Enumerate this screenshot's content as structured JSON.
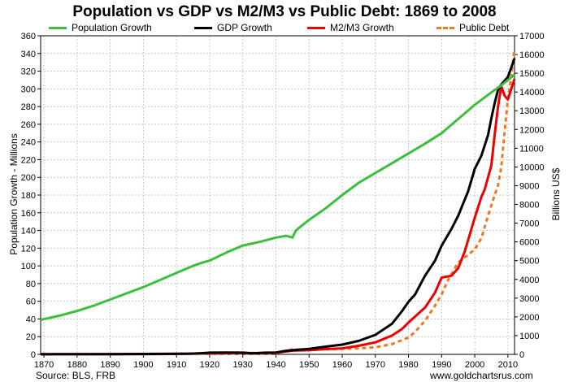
{
  "chart_data": {
    "type": "line",
    "title": "Population vs GDP vs M2/M3 vs Public Debt: 1869 to 2008",
    "ylabel_left": "Population Growth - Millions",
    "ylabel_right": "Billions US$",
    "source": "Source: BLS, FRB",
    "website": "www.goldchartsrus.com",
    "xlim": [
      1869,
      2012
    ],
    "ylim_left": [
      0,
      360
    ],
    "ylim_right": [
      0,
      17000
    ],
    "x_ticks": [
      1870,
      1880,
      1890,
      1900,
      1910,
      1920,
      1930,
      1940,
      1950,
      1960,
      1970,
      1980,
      1990,
      2000,
      2010
    ],
    "y_left_ticks": [
      0,
      20,
      40,
      60,
      80,
      100,
      120,
      140,
      160,
      180,
      200,
      220,
      240,
      260,
      280,
      300,
      320,
      340,
      360
    ],
    "y_right_ticks": [
      0,
      1000,
      2000,
      3000,
      4000,
      5000,
      6000,
      7000,
      8000,
      9000,
      10000,
      11000,
      12000,
      13000,
      14000,
      15000,
      16000,
      17000
    ],
    "grid": true,
    "legend_position": "top",
    "series": [
      {
        "name": "Population Growth",
        "axis": "left",
        "color": "#3cbf3c",
        "style": "solid",
        "points": [
          [
            1869,
            39
          ],
          [
            1875,
            44
          ],
          [
            1880,
            49
          ],
          [
            1885,
            55
          ],
          [
            1890,
            62
          ],
          [
            1895,
            69
          ],
          [
            1900,
            76
          ],
          [
            1905,
            84
          ],
          [
            1910,
            92
          ],
          [
            1915,
            100
          ],
          [
            1918,
            104
          ],
          [
            1920,
            106
          ],
          [
            1925,
            115
          ],
          [
            1930,
            123
          ],
          [
            1935,
            127
          ],
          [
            1940,
            132
          ],
          [
            1943,
            134
          ],
          [
            1945,
            132
          ],
          [
            1946,
            140
          ],
          [
            1950,
            152
          ],
          [
            1955,
            165
          ],
          [
            1960,
            180
          ],
          [
            1965,
            194
          ],
          [
            1970,
            205
          ],
          [
            1975,
            216
          ],
          [
            1980,
            227
          ],
          [
            1985,
            238
          ],
          [
            1990,
            250
          ],
          [
            1995,
            266
          ],
          [
            2000,
            282
          ],
          [
            2005,
            296
          ],
          [
            2008,
            304
          ],
          [
            2012,
            316
          ]
        ]
      },
      {
        "name": "GDP Growth",
        "axis": "right",
        "color": "#000000",
        "style": "solid",
        "points": [
          [
            1869,
            8
          ],
          [
            1880,
            10
          ],
          [
            1890,
            13
          ],
          [
            1900,
            20
          ],
          [
            1910,
            33
          ],
          [
            1915,
            40
          ],
          [
            1920,
            90
          ],
          [
            1925,
            94
          ],
          [
            1930,
            90
          ],
          [
            1933,
            56
          ],
          [
            1937,
            90
          ],
          [
            1940,
            100
          ],
          [
            1943,
            190
          ],
          [
            1945,
            220
          ],
          [
            1950,
            290
          ],
          [
            1955,
            410
          ],
          [
            1960,
            520
          ],
          [
            1965,
            720
          ],
          [
            1970,
            1040
          ],
          [
            1975,
            1630
          ],
          [
            1978,
            2300
          ],
          [
            1980,
            2800
          ],
          [
            1982,
            3200
          ],
          [
            1985,
            4200
          ],
          [
            1988,
            5000
          ],
          [
            1990,
            5800
          ],
          [
            1993,
            6700
          ],
          [
            1995,
            7400
          ],
          [
            1998,
            8700
          ],
          [
            2000,
            9900
          ],
          [
            2002,
            10600
          ],
          [
            2004,
            11700
          ],
          [
            2005,
            12600
          ],
          [
            2006,
            13400
          ],
          [
            2007,
            14100
          ],
          [
            2008,
            14400
          ],
          [
            2010,
            14800
          ],
          [
            2012,
            15800
          ]
        ]
      },
      {
        "name": "M2/M3 Growth",
        "axis": "right",
        "color": "#ee0000",
        "style": "solid",
        "points": [
          [
            1869,
            5
          ],
          [
            1890,
            8
          ],
          [
            1900,
            10
          ],
          [
            1910,
            20
          ],
          [
            1920,
            60
          ],
          [
            1930,
            70
          ],
          [
            1940,
            80
          ],
          [
            1945,
            200
          ],
          [
            1950,
            220
          ],
          [
            1955,
            280
          ],
          [
            1960,
            320
          ],
          [
            1965,
            460
          ],
          [
            1970,
            640
          ],
          [
            1975,
            1000
          ],
          [
            1978,
            1350
          ],
          [
            1980,
            1700
          ],
          [
            1985,
            2500
          ],
          [
            1988,
            3300
          ],
          [
            1990,
            4100
          ],
          [
            1993,
            4200
          ],
          [
            1995,
            4600
          ],
          [
            1997,
            5500
          ],
          [
            1998,
            6100
          ],
          [
            2000,
            7300
          ],
          [
            2002,
            8400
          ],
          [
            2003,
            8800
          ],
          [
            2005,
            10100
          ],
          [
            2006,
            11700
          ],
          [
            2007,
            13200
          ],
          [
            2008,
            14300
          ],
          [
            2009,
            13800
          ],
          [
            2010,
            13600
          ],
          [
            2012,
            14700
          ]
        ]
      },
      {
        "name": "Public Debt",
        "axis": "right",
        "color": "#f07820",
        "style": "dashed",
        "points": [
          [
            1869,
            0
          ],
          [
            1940,
            50
          ],
          [
            1945,
            260
          ],
          [
            1950,
            260
          ],
          [
            1960,
            290
          ],
          [
            1965,
            320
          ],
          [
            1970,
            380
          ],
          [
            1975,
            540
          ],
          [
            1980,
            900
          ],
          [
            1982,
            1200
          ],
          [
            1985,
            1800
          ],
          [
            1988,
            2600
          ],
          [
            1990,
            3200
          ],
          [
            1992,
            4000
          ],
          [
            1995,
            4900
          ],
          [
            2000,
            5600
          ],
          [
            2002,
            6200
          ],
          [
            2004,
            7400
          ],
          [
            2006,
            8500
          ],
          [
            2007,
            9000
          ],
          [
            2008,
            10000
          ],
          [
            2009,
            11900
          ],
          [
            2010,
            13600
          ],
          [
            2011,
            14800
          ],
          [
            2012,
            16300
          ]
        ]
      }
    ]
  }
}
